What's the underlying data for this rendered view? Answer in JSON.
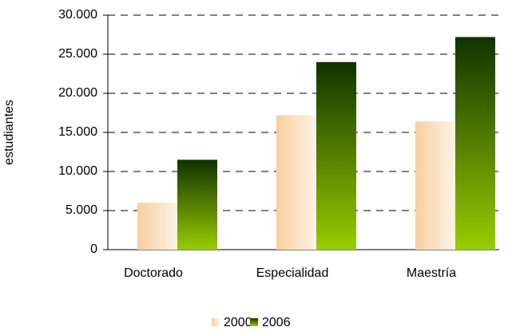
{
  "chart_data": {
    "type": "bar",
    "y_label": "estudiantes",
    "categories": [
      "Doctorado",
      "Especialidad",
      "Maestría"
    ],
    "series": [
      {
        "name": "2000",
        "color": "#f8cf9f",
        "values": [
          6000,
          17200,
          16400
        ]
      },
      {
        "name": "2006",
        "color": "#99cc00",
        "values": [
          11500,
          24000,
          27200
        ]
      }
    ],
    "ylim": [
      0,
      30000
    ],
    "yticks": [
      0,
      {
        "value": 5000,
        "label": "5.000"
      },
      {
        "value": 10000,
        "label": "10.000"
      },
      {
        "value": 15000,
        "label": "15.000"
      },
      {
        "value": 20000,
        "label": "20.000"
      },
      {
        "value": 25000,
        "label": "25.000"
      },
      {
        "value": 30000,
        "label": "30.000"
      }
    ],
    "grid": true,
    "legend": "bottom"
  }
}
